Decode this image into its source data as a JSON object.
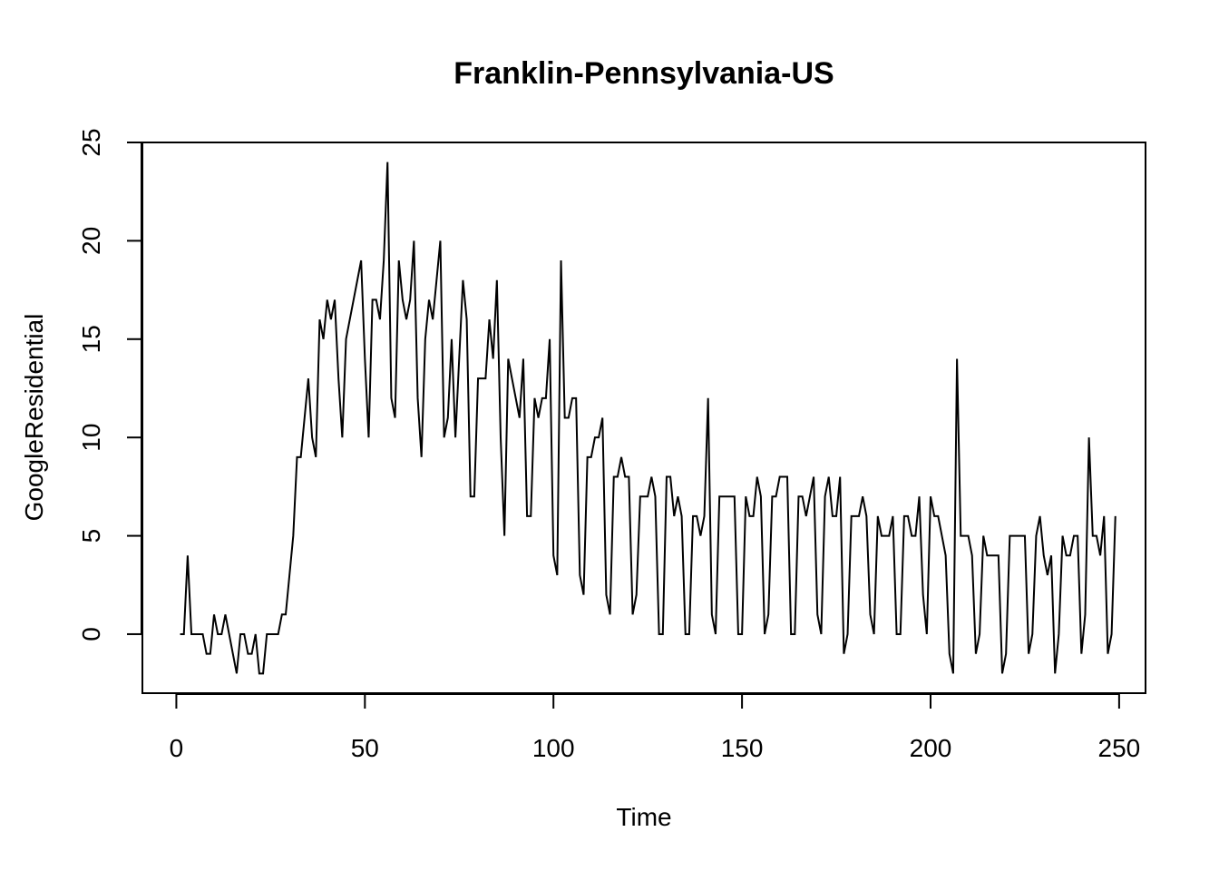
{
  "chart_data": {
    "type": "line",
    "title": "Franklin-Pennsylvania-US",
    "xlabel": "Time",
    "ylabel": "GoogleResidential",
    "xlim": [
      -9,
      257
    ],
    "ylim": [
      -3,
      25
    ],
    "xticks": [
      0,
      50,
      100,
      150,
      200,
      250
    ],
    "yticks": [
      0,
      5,
      10,
      15,
      20,
      25
    ],
    "grid": false,
    "line_color": "#000000",
    "series": [
      {
        "x_start": 1,
        "values": [
          0,
          0,
          4,
          0,
          0,
          0,
          0,
          -1,
          -1,
          1,
          0,
          0,
          1,
          0,
          -1,
          -2,
          0,
          0,
          -1,
          -1,
          0,
          -2,
          -2,
          0,
          0,
          0,
          0,
          1,
          1,
          3,
          5,
          9,
          9,
          11,
          13,
          10,
          9,
          16,
          15,
          17,
          16,
          17,
          13,
          10,
          15,
          16,
          17,
          18,
          19,
          14,
          10,
          17,
          17,
          16,
          19,
          24,
          12,
          11,
          19,
          17,
          16,
          17,
          20,
          12,
          9,
          15,
          17,
          16,
          18,
          20,
          10,
          11,
          15,
          10,
          14,
          18,
          16,
          7,
          7,
          13,
          13,
          13,
          16,
          14,
          18,
          10,
          5,
          14,
          13,
          12,
          11,
          14,
          6,
          6,
          12,
          11,
          12,
          12,
          15,
          4,
          3,
          19,
          11,
          11,
          12,
          12,
          3,
          2,
          9,
          9,
          10,
          10,
          11,
          2,
          1,
          8,
          8,
          9,
          8,
          8,
          1,
          2,
          7,
          7,
          7,
          8,
          7,
          0,
          0,
          8,
          8,
          6,
          7,
          6,
          0,
          0,
          6,
          6,
          5,
          6,
          12,
          1,
          0,
          7,
          7,
          7,
          7,
          7,
          0,
          0,
          7,
          6,
          6,
          8,
          7,
          0,
          1,
          7,
          7,
          8,
          8,
          8,
          0,
          0,
          7,
          7,
          6,
          7,
          8,
          1,
          0,
          7,
          8,
          6,
          6,
          8,
          -1,
          0,
          6,
          6,
          6,
          7,
          6,
          1,
          0,
          6,
          5,
          5,
          5,
          6,
          0,
          0,
          6,
          6,
          5,
          5,
          7,
          2,
          0,
          7,
          6,
          6,
          5,
          4,
          -1,
          -2,
          14,
          5,
          5,
          5,
          4,
          -1,
          0,
          5,
          4,
          4,
          4,
          4,
          -2,
          -1,
          5,
          5,
          5,
          5,
          5,
          -1,
          0,
          5,
          6,
          4,
          3,
          4,
          -2,
          0,
          5,
          4,
          4,
          5,
          5,
          -1,
          1,
          10,
          5,
          5,
          4,
          6,
          -1,
          0,
          6
        ]
      }
    ]
  }
}
